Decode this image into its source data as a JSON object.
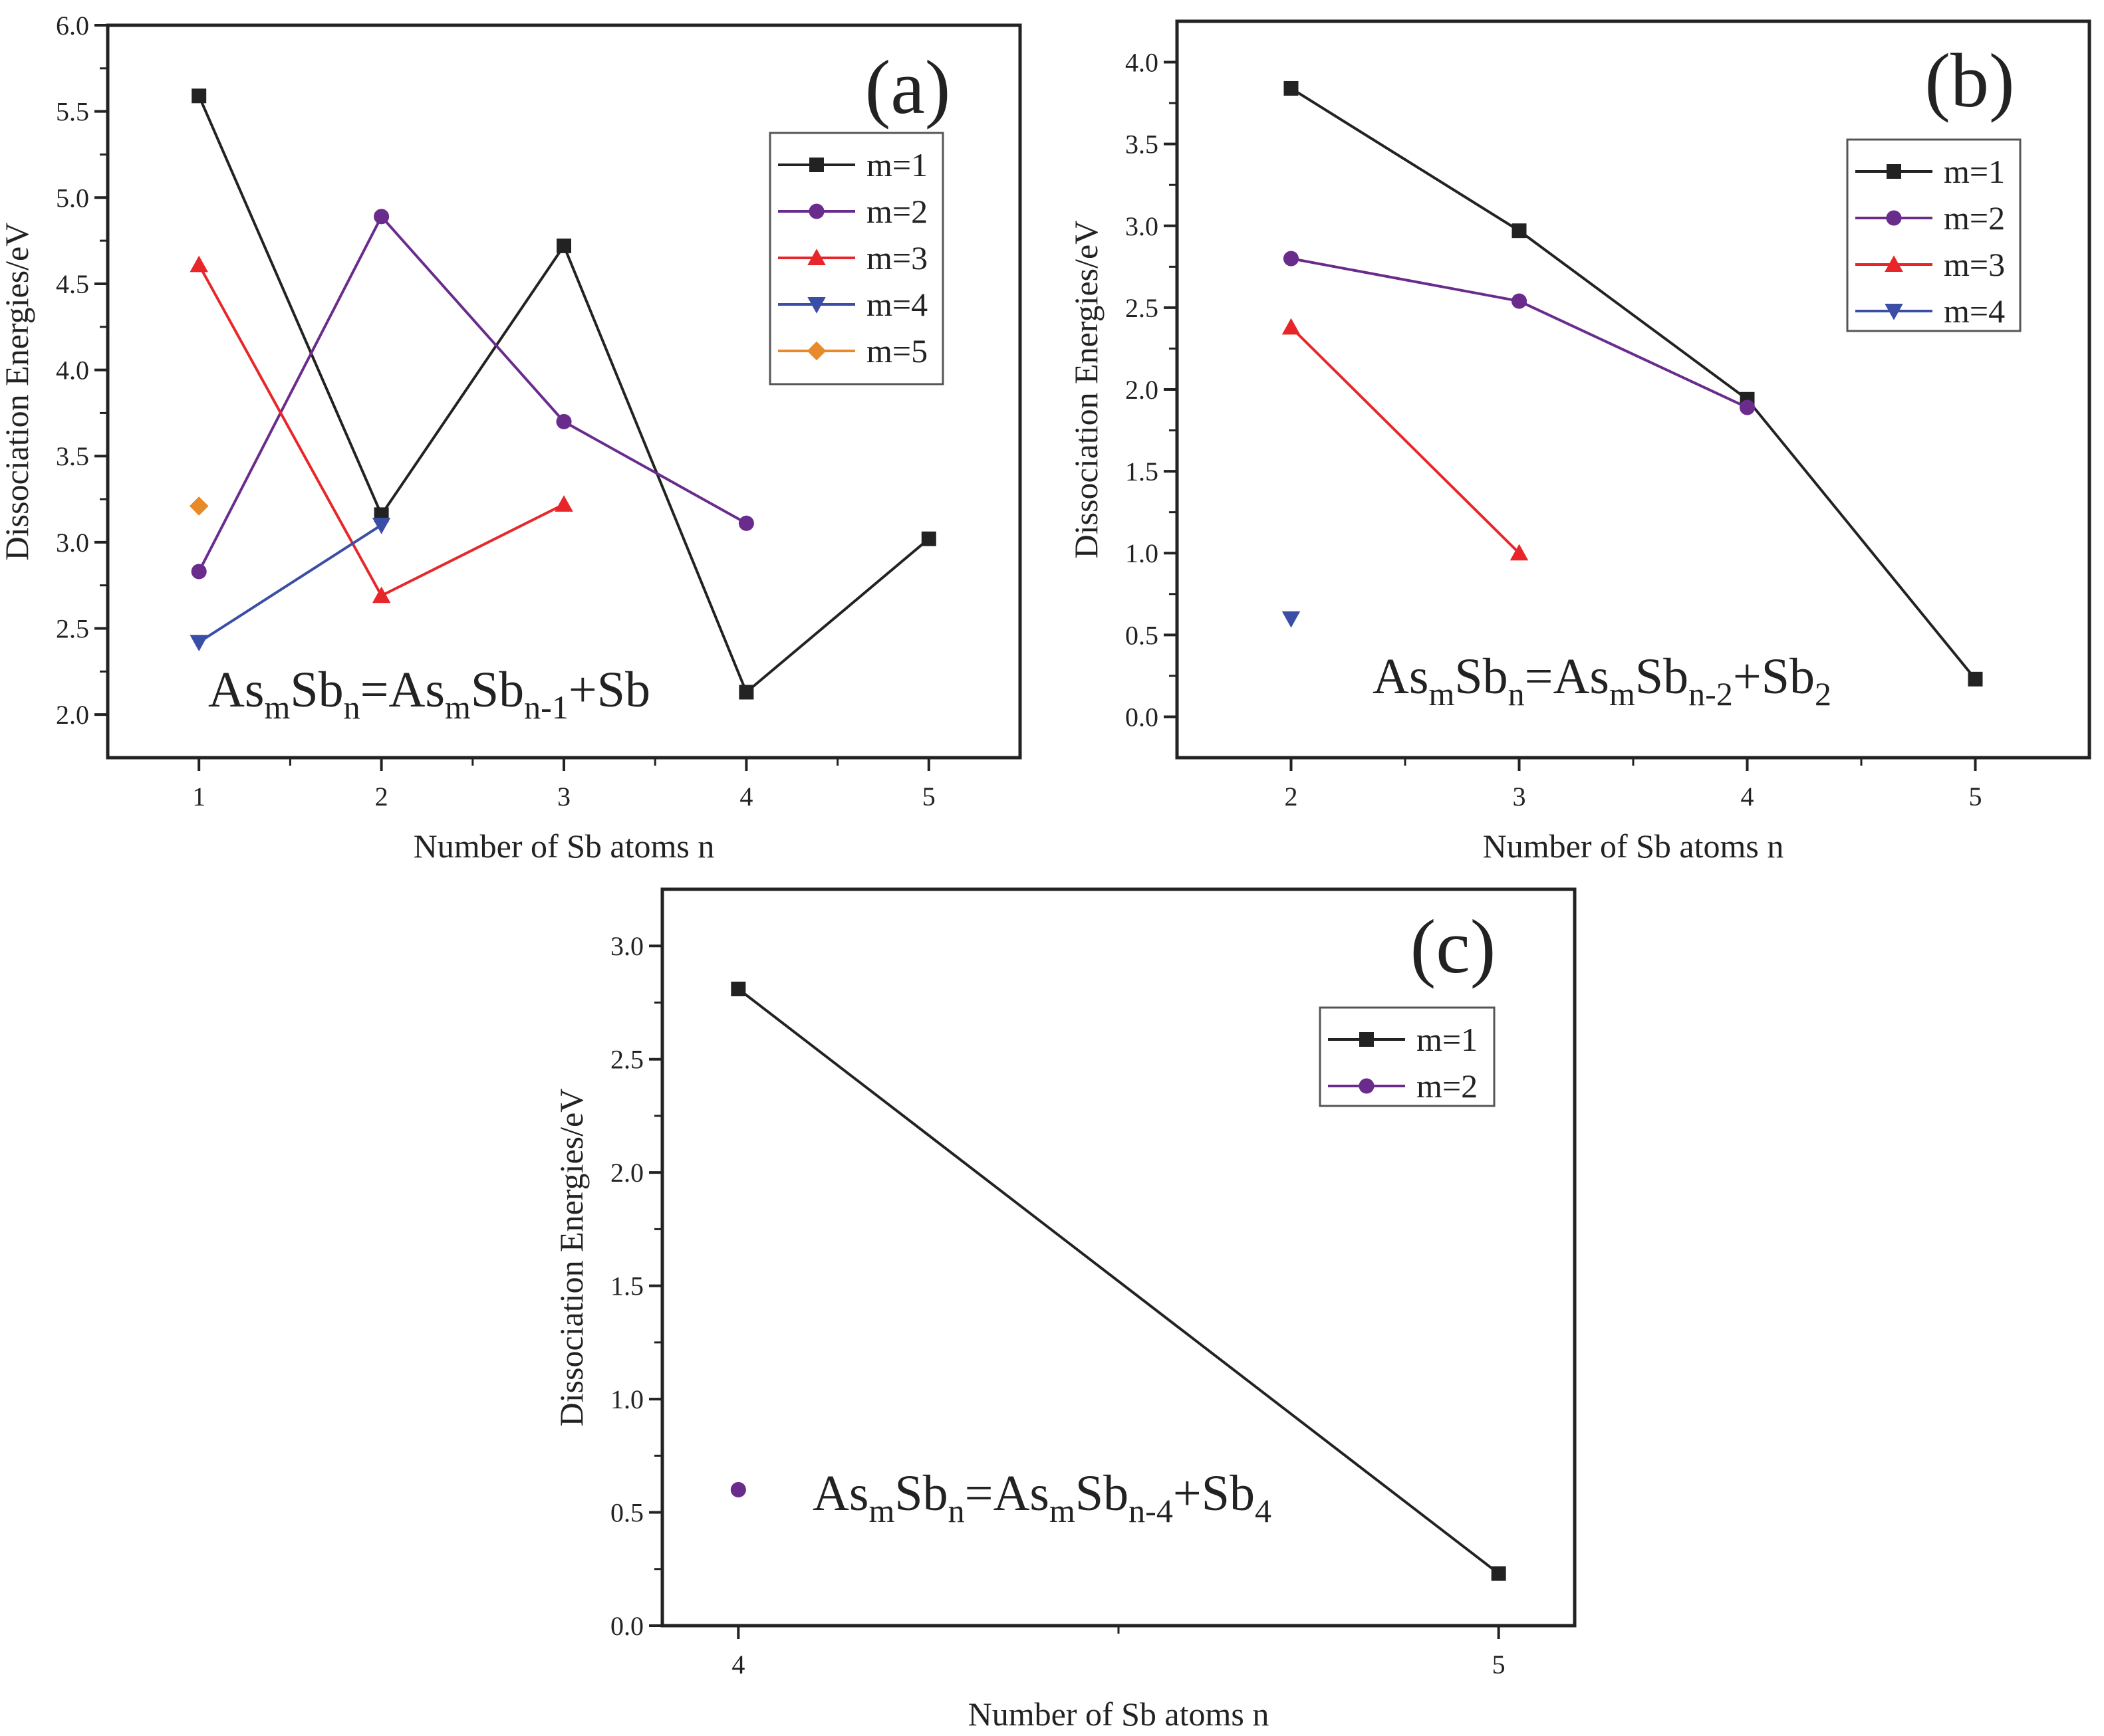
{
  "figure": {
    "description_hidden": false
  },
  "chart_data": [
    {
      "id": "a",
      "type": "line",
      "panel_label": "(a)",
      "xlabel": "Number of Sb atoms n",
      "ylabel": "Dissociation Energies/eV",
      "xlim": [
        0.5,
        5.5
      ],
      "ylim": [
        1.75,
        6.0
      ],
      "xticks": [
        1,
        2,
        3,
        4,
        5
      ],
      "xtick_labels": [
        "1",
        "2",
        "3",
        "4",
        "5"
      ],
      "yticks": [
        2.0,
        2.5,
        3.0,
        3.5,
        4.0,
        4.5,
        5.0,
        5.5,
        6.0
      ],
      "ytick_labels": [
        "2.0",
        "2.5",
        "3.0",
        "3.5",
        "4.0",
        "4.5",
        "5.0",
        "5.5",
        "6.0"
      ],
      "legend_position": "top-right",
      "equation": {
        "base": "As",
        "m": "m",
        "mid": "Sb",
        "n": "n",
        "eq": "=As",
        "m2": "m",
        "mid2": "Sb",
        "sub": "n-1",
        "tail": "+Sb",
        "tail_sub": ""
      },
      "series": [
        {
          "name": "m=1",
          "color": "#222222",
          "marker": "square",
          "x": [
            1,
            2,
            3,
            4,
            5
          ],
          "y": [
            5.59,
            3.16,
            4.72,
            2.13,
            3.02
          ]
        },
        {
          "name": "m=2",
          "color": "#6a2c8c",
          "marker": "circle",
          "x": [
            1,
            2,
            3,
            4
          ],
          "y": [
            2.83,
            4.89,
            3.7,
            3.11
          ]
        },
        {
          "name": "m=3",
          "color": "#e8262a",
          "marker": "triangle-up",
          "x": [
            1,
            2,
            3
          ],
          "y": [
            4.61,
            2.69,
            3.22
          ]
        },
        {
          "name": "m=4",
          "color": "#3a4ea6",
          "marker": "triangle-down",
          "x": [
            1,
            2
          ],
          "y": [
            2.42,
            3.1
          ]
        },
        {
          "name": "m=5",
          "color": "#e8892a",
          "marker": "diamond",
          "x": [
            1
          ],
          "y": [
            3.21
          ]
        }
      ]
    },
    {
      "id": "b",
      "type": "line",
      "panel_label": "(b)",
      "xlabel": "Number of Sb atoms n",
      "ylabel": "Dissociation Energies/eV",
      "xlim": [
        1.5,
        5.5
      ],
      "ylim": [
        -0.25,
        4.25
      ],
      "xticks": [
        2,
        3,
        4,
        5
      ],
      "xtick_labels": [
        "2",
        "3",
        "4",
        "5"
      ],
      "yticks": [
        0.0,
        0.5,
        1.0,
        1.5,
        2.0,
        2.5,
        3.0,
        3.5,
        4.0
      ],
      "ytick_labels": [
        "0.0",
        "0.5",
        "1.0",
        "1.5",
        "2.0",
        "2.5",
        "3.0",
        "3.5",
        "4.0"
      ],
      "legend_position": "top-right",
      "equation": {
        "base": "As",
        "m": "m",
        "mid": "Sb",
        "n": "n",
        "eq": "=As",
        "m2": "m",
        "mid2": "Sb",
        "sub": "n-2",
        "tail": "+Sb",
        "tail_sub": "2"
      },
      "series": [
        {
          "name": "m=1",
          "color": "#222222",
          "marker": "square",
          "x": [
            2,
            3,
            4,
            5
          ],
          "y": [
            3.84,
            2.97,
            1.94,
            0.23
          ]
        },
        {
          "name": "m=2",
          "color": "#6a2c8c",
          "marker": "circle",
          "x": [
            2,
            3,
            4
          ],
          "y": [
            2.8,
            2.54,
            1.89
          ]
        },
        {
          "name": "m=3",
          "color": "#e8262a",
          "marker": "triangle-up",
          "x": [
            2,
            3
          ],
          "y": [
            2.38,
            1.0
          ]
        },
        {
          "name": "m=4",
          "color": "#3a4ea6",
          "marker": "triangle-down",
          "x": [
            2
          ],
          "y": [
            0.6
          ]
        }
      ]
    },
    {
      "id": "c",
      "type": "line",
      "panel_label": "(c)",
      "xlabel": "Number of Sb atoms n",
      "ylabel": "Dissociation Energies/eV",
      "xlim": [
        3.9,
        5.1
      ],
      "ylim": [
        0.0,
        3.25
      ],
      "xticks": [
        4,
        5
      ],
      "xtick_labels": [
        "4",
        "5"
      ],
      "yticks": [
        0.0,
        0.5,
        1.0,
        1.5,
        2.0,
        2.5,
        3.0
      ],
      "ytick_labels": [
        "0.0",
        "0.5",
        "1.0",
        "1.5",
        "2.0",
        "2.5",
        "3.0"
      ],
      "legend_position": "top-right",
      "equation": {
        "base": "As",
        "m": "m",
        "mid": "Sb",
        "n": "n",
        "eq": "=As",
        "m2": "m",
        "mid2": "Sb",
        "sub": "n-4",
        "tail": "+Sb",
        "tail_sub": "4"
      },
      "series": [
        {
          "name": "m=1",
          "color": "#222222",
          "marker": "square",
          "x": [
            4,
            5
          ],
          "y": [
            2.81,
            0.23
          ]
        },
        {
          "name": "m=2",
          "color": "#6a2c8c",
          "marker": "circle",
          "x": [
            4
          ],
          "y": [
            0.6
          ]
        }
      ]
    }
  ]
}
